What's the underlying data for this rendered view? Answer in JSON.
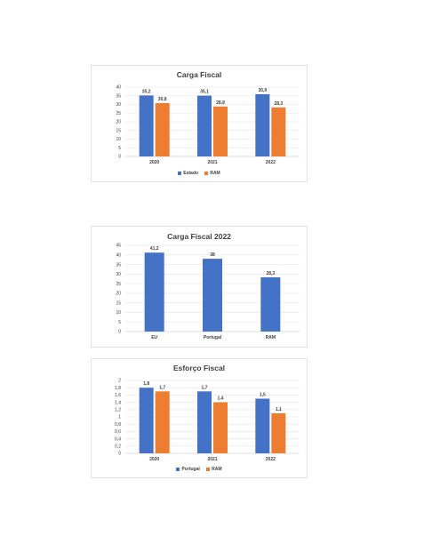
{
  "chart_data": [
    {
      "type": "bar",
      "title": "Carga Fiscal",
      "categories": [
        "2020",
        "2021",
        "2022"
      ],
      "series": [
        {
          "name": "Estado",
          "color": "#4472c4",
          "values": [
            35.2,
            35.1,
            35.9
          ],
          "labels": [
            "35,2",
            "35,1",
            "35,9"
          ]
        },
        {
          "name": "RAM",
          "color": "#ed7d31",
          "values": [
            30.8,
            28.8,
            28.3
          ],
          "labels": [
            "30,8",
            "28,8",
            "28,3"
          ]
        }
      ],
      "ylim": [
        0,
        40
      ],
      "yticks": [
        0,
        5,
        10,
        15,
        20,
        25,
        30,
        35,
        40
      ],
      "ytick_labels": [
        "0",
        "5",
        "10",
        "15",
        "20",
        "25",
        "30",
        "35",
        "40"
      ],
      "grid": true,
      "legend": "bottom"
    },
    {
      "type": "bar",
      "title": "Carga  Fiscal 2022",
      "categories": [
        "EU",
        "Portugal",
        "RAM"
      ],
      "series": [
        {
          "color": "#4472c4",
          "values": [
            41.2,
            38,
            28.3
          ],
          "labels": [
            "41,2",
            "38",
            "28,3"
          ]
        }
      ],
      "ylim": [
        0,
        45
      ],
      "yticks": [
        0,
        5,
        10,
        15,
        20,
        25,
        30,
        35,
        40,
        45
      ],
      "ytick_labels": [
        "0",
        "5",
        "10",
        "15",
        "20",
        "25",
        "30",
        "35",
        "40",
        "45"
      ],
      "grid": true
    },
    {
      "type": "bar",
      "title": "Esforço Fiscal",
      "categories": [
        "2020",
        "2021",
        "2022"
      ],
      "series": [
        {
          "name": "Portugal",
          "color": "#4472c4",
          "values": [
            1.8,
            1.7,
            1.5
          ],
          "labels": [
            "1,8",
            "1,7",
            "1,5"
          ]
        },
        {
          "name": "RAM",
          "color": "#ed7d31",
          "values": [
            1.7,
            1.4,
            1.1
          ],
          "labels": [
            "1,7",
            "1,4",
            "1,1"
          ]
        }
      ],
      "ylim": [
        0,
        2
      ],
      "yticks": [
        0,
        0.2,
        0.4,
        0.6,
        0.8,
        1,
        1.2,
        1.4,
        1.6,
        1.8,
        2
      ],
      "ytick_labels": [
        "0",
        "0,2",
        "0,4",
        "0,6",
        "0,8",
        "1",
        "1,2",
        "1,4",
        "1,6",
        "1,8",
        "2"
      ],
      "grid": true,
      "legend": "bottom"
    }
  ]
}
